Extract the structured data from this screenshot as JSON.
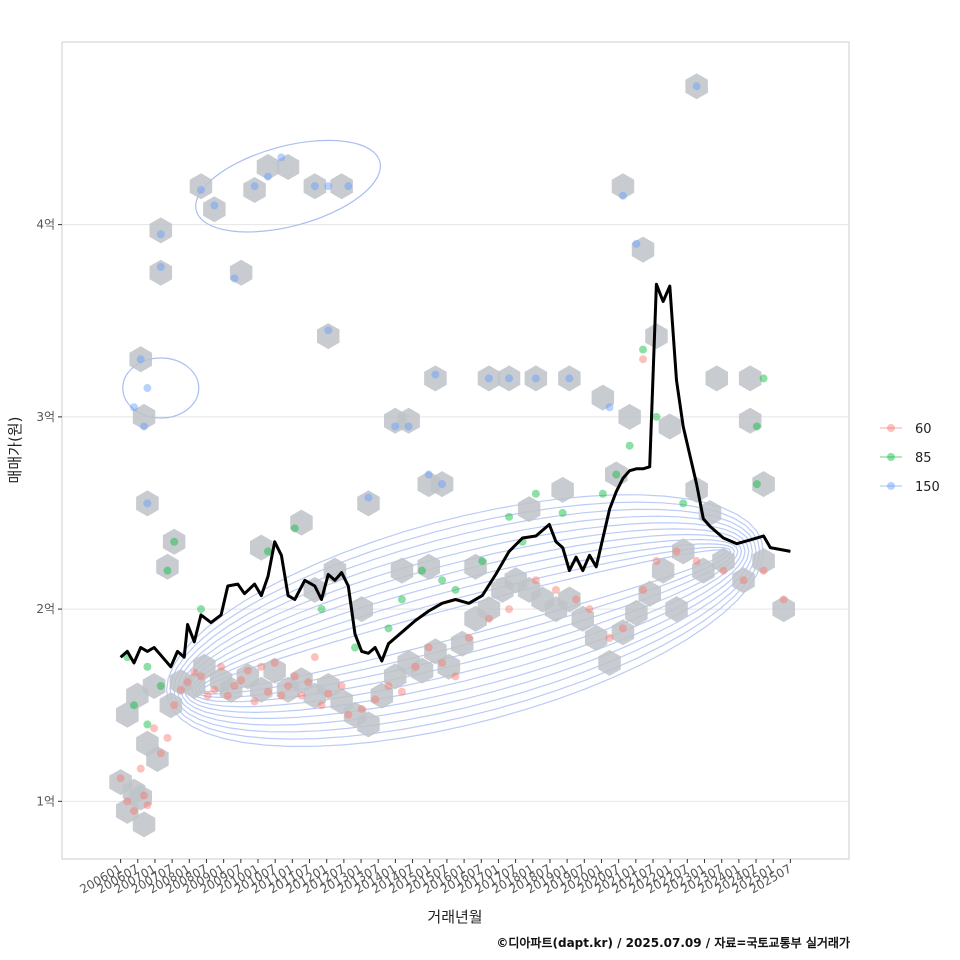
{
  "chart_data": {
    "type": "scatter",
    "xlabel": "거래년월",
    "ylabel": "매매가(원)",
    "x_categories": [
      "200601",
      "200607",
      "200701",
      "200707",
      "200801",
      "200807",
      "200901",
      "200907",
      "201001",
      "201007",
      "201101",
      "201107",
      "201201",
      "201207",
      "201301",
      "201307",
      "201401",
      "201407",
      "201501",
      "201507",
      "201601",
      "201607",
      "201701",
      "201707",
      "201801",
      "201807",
      "201901",
      "201907",
      "202001",
      "202007",
      "202101",
      "202107",
      "202201",
      "202207",
      "202301",
      "202307",
      "202401",
      "202407",
      "202501",
      "202507"
    ],
    "y_ticks": [
      {
        "value": 1,
        "label": "1억"
      },
      {
        "value": 2,
        "label": "2억"
      },
      {
        "value": 3,
        "label": "3억"
      },
      {
        "value": 4,
        "label": "4억"
      }
    ],
    "ylim": [
      0.7,
      4.95
    ],
    "xlim": [
      -0.0875,
      1.0875
    ],
    "grid": true,
    "legend": {
      "position": "right",
      "items": [
        {
          "label": "60",
          "color": "#F8766D"
        },
        {
          "label": "85",
          "color": "#00BA38"
        },
        {
          "label": "150",
          "color": "#619CFF"
        }
      ]
    },
    "caption": "©디아파트(dapt.kr) / 2025.07.09 / 자료=국토교통부 실거래가",
    "colors": {
      "hex": "#BEC3C8",
      "line": "#000000",
      "contour": "#A9BEF2",
      "grid": "#E5E5E5",
      "border": "#CCCCCC"
    },
    "median_line": [
      [
        0.0,
        1.75
      ],
      [
        0.01,
        1.78
      ],
      [
        0.02,
        1.72
      ],
      [
        0.03,
        1.8
      ],
      [
        0.04,
        1.78
      ],
      [
        0.05,
        1.8
      ],
      [
        0.06,
        1.76
      ],
      [
        0.075,
        1.7
      ],
      [
        0.085,
        1.78
      ],
      [
        0.095,
        1.75
      ],
      [
        0.1,
        1.92
      ],
      [
        0.11,
        1.83
      ],
      [
        0.12,
        1.97
      ],
      [
        0.135,
        1.93
      ],
      [
        0.15,
        1.97
      ],
      [
        0.16,
        2.12
      ],
      [
        0.175,
        2.13
      ],
      [
        0.185,
        2.08
      ],
      [
        0.2,
        2.13
      ],
      [
        0.21,
        2.07
      ],
      [
        0.22,
        2.17
      ],
      [
        0.23,
        2.35
      ],
      [
        0.24,
        2.28
      ],
      [
        0.25,
        2.07
      ],
      [
        0.26,
        2.05
      ],
      [
        0.275,
        2.15
      ],
      [
        0.29,
        2.12
      ],
      [
        0.3,
        2.05
      ],
      [
        0.31,
        2.18
      ],
      [
        0.32,
        2.15
      ],
      [
        0.33,
        2.19
      ],
      [
        0.34,
        2.12
      ],
      [
        0.35,
        1.87
      ],
      [
        0.36,
        1.78
      ],
      [
        0.37,
        1.77
      ],
      [
        0.38,
        1.8
      ],
      [
        0.39,
        1.73
      ],
      [
        0.4,
        1.82
      ],
      [
        0.42,
        1.88
      ],
      [
        0.44,
        1.94
      ],
      [
        0.46,
        1.99
      ],
      [
        0.48,
        2.03
      ],
      [
        0.5,
        2.05
      ],
      [
        0.52,
        2.03
      ],
      [
        0.54,
        2.07
      ],
      [
        0.56,
        2.18
      ],
      [
        0.58,
        2.3
      ],
      [
        0.6,
        2.37
      ],
      [
        0.62,
        2.38
      ],
      [
        0.64,
        2.44
      ],
      [
        0.65,
        2.35
      ],
      [
        0.66,
        2.32
      ],
      [
        0.67,
        2.2
      ],
      [
        0.68,
        2.27
      ],
      [
        0.69,
        2.2
      ],
      [
        0.7,
        2.28
      ],
      [
        0.71,
        2.22
      ],
      [
        0.72,
        2.37
      ],
      [
        0.73,
        2.52
      ],
      [
        0.74,
        2.61
      ],
      [
        0.75,
        2.68
      ],
      [
        0.76,
        2.72
      ],
      [
        0.77,
        2.73
      ],
      [
        0.78,
        2.73
      ],
      [
        0.79,
        2.74
      ],
      [
        0.8,
        3.69
      ],
      [
        0.81,
        3.6
      ],
      [
        0.82,
        3.68
      ],
      [
        0.83,
        3.19
      ],
      [
        0.84,
        2.95
      ],
      [
        0.85,
        2.8
      ],
      [
        0.86,
        2.65
      ],
      [
        0.87,
        2.47
      ],
      [
        0.88,
        2.43
      ],
      [
        0.9,
        2.37
      ],
      [
        0.92,
        2.34
      ],
      [
        0.94,
        2.36
      ],
      [
        0.96,
        2.38
      ],
      [
        0.97,
        2.32
      ],
      [
        1.0,
        2.3
      ]
    ],
    "points": {
      "60": [
        [
          0.0,
          1.12
        ],
        [
          0.01,
          1.0
        ],
        [
          0.02,
          0.95
        ],
        [
          0.03,
          1.17
        ],
        [
          0.035,
          1.03
        ],
        [
          0.04,
          0.98
        ],
        [
          0.05,
          1.38
        ],
        [
          0.06,
          1.25
        ],
        [
          0.07,
          1.33
        ],
        [
          0.08,
          1.5
        ],
        [
          0.09,
          1.58
        ],
        [
          0.1,
          1.62
        ],
        [
          0.11,
          1.67
        ],
        [
          0.12,
          1.65
        ],
        [
          0.13,
          1.55
        ],
        [
          0.14,
          1.58
        ],
        [
          0.15,
          1.7
        ],
        [
          0.16,
          1.55
        ],
        [
          0.17,
          1.6
        ],
        [
          0.18,
          1.63
        ],
        [
          0.19,
          1.68
        ],
        [
          0.2,
          1.52
        ],
        [
          0.21,
          1.7
        ],
        [
          0.22,
          1.57
        ],
        [
          0.23,
          1.72
        ],
        [
          0.24,
          1.55
        ],
        [
          0.25,
          1.6
        ],
        [
          0.26,
          1.65
        ],
        [
          0.27,
          1.55
        ],
        [
          0.28,
          1.62
        ],
        [
          0.29,
          1.75
        ],
        [
          0.3,
          1.5
        ],
        [
          0.31,
          1.56
        ],
        [
          0.33,
          1.6
        ],
        [
          0.34,
          1.45
        ],
        [
          0.36,
          1.48
        ],
        [
          0.38,
          1.53
        ],
        [
          0.4,
          1.6
        ],
        [
          0.42,
          1.57
        ],
        [
          0.44,
          1.7
        ],
        [
          0.46,
          1.8
        ],
        [
          0.48,
          1.72
        ],
        [
          0.5,
          1.65
        ],
        [
          0.52,
          1.85
        ],
        [
          0.55,
          1.95
        ],
        [
          0.58,
          2.0
        ],
        [
          0.62,
          2.15
        ],
        [
          0.65,
          2.1
        ],
        [
          0.68,
          2.05
        ],
        [
          0.7,
          2.0
        ],
        [
          0.73,
          1.85
        ],
        [
          0.75,
          1.9
        ],
        [
          0.78,
          2.1
        ],
        [
          0.8,
          2.25
        ],
        [
          0.78,
          3.3
        ],
        [
          0.83,
          2.3
        ],
        [
          0.86,
          2.25
        ],
        [
          0.9,
          2.2
        ],
        [
          0.93,
          2.15
        ],
        [
          0.96,
          2.2
        ],
        [
          0.99,
          2.05
        ]
      ],
      "85": [
        [
          0.01,
          1.75
        ],
        [
          0.02,
          1.5
        ],
        [
          0.04,
          1.7
        ],
        [
          0.04,
          1.4
        ],
        [
          0.06,
          1.6
        ],
        [
          0.07,
          2.2
        ],
        [
          0.08,
          2.35
        ],
        [
          0.12,
          2.0
        ],
        [
          0.22,
          2.3
        ],
        [
          0.26,
          2.42
        ],
        [
          0.3,
          2.0
        ],
        [
          0.35,
          1.8
        ],
        [
          0.4,
          1.9
        ],
        [
          0.42,
          2.05
        ],
        [
          0.45,
          2.2
        ],
        [
          0.48,
          2.15
        ],
        [
          0.5,
          2.1
        ],
        [
          0.54,
          2.25
        ],
        [
          0.58,
          2.48
        ],
        [
          0.6,
          2.35
        ],
        [
          0.62,
          2.6
        ],
        [
          0.66,
          2.5
        ],
        [
          0.72,
          2.6
        ],
        [
          0.74,
          2.7
        ],
        [
          0.76,
          2.85
        ],
        [
          0.78,
          3.35
        ],
        [
          0.8,
          3.0
        ],
        [
          0.84,
          2.55
        ],
        [
          0.95,
          2.95
        ],
        [
          0.96,
          3.2
        ],
        [
          0.95,
          2.65
        ]
      ],
      "150": [
        [
          0.02,
          3.05
        ],
        [
          0.03,
          3.3
        ],
        [
          0.035,
          2.95
        ],
        [
          0.04,
          3.15
        ],
        [
          0.04,
          2.55
        ],
        [
          0.06,
          3.95
        ],
        [
          0.06,
          3.78
        ],
        [
          0.12,
          4.18
        ],
        [
          0.14,
          4.1
        ],
        [
          0.17,
          3.72
        ],
        [
          0.2,
          4.2
        ],
        [
          0.22,
          4.25
        ],
        [
          0.24,
          4.35
        ],
        [
          0.29,
          4.2
        ],
        [
          0.31,
          4.2
        ],
        [
          0.34,
          4.2
        ],
        [
          0.31,
          3.45
        ],
        [
          0.37,
          2.58
        ],
        [
          0.41,
          2.95
        ],
        [
          0.43,
          2.95
        ],
        [
          0.46,
          2.7
        ],
        [
          0.48,
          2.65
        ],
        [
          0.47,
          3.22
        ],
        [
          0.55,
          3.2
        ],
        [
          0.58,
          3.2
        ],
        [
          0.62,
          3.2
        ],
        [
          0.67,
          3.2
        ],
        [
          0.73,
          3.05
        ],
        [
          0.75,
          4.15
        ],
        [
          0.77,
          3.9
        ],
        [
          0.86,
          4.72
        ]
      ]
    },
    "hexbins": [
      [
        0.0,
        1.1
      ],
      [
        0.01,
        0.95
      ],
      [
        0.02,
        1.05
      ],
      [
        0.03,
        1.02
      ],
      [
        0.035,
        0.88
      ],
      [
        0.04,
        1.3
      ],
      [
        0.055,
        1.22
      ],
      [
        0.01,
        1.45
      ],
      [
        0.025,
        1.55
      ],
      [
        0.05,
        1.6
      ],
      [
        0.075,
        1.5
      ],
      [
        0.09,
        1.62
      ],
      [
        0.11,
        1.6
      ],
      [
        0.125,
        1.7
      ],
      [
        0.15,
        1.63
      ],
      [
        0.165,
        1.58
      ],
      [
        0.19,
        1.65
      ],
      [
        0.21,
        1.58
      ],
      [
        0.23,
        1.68
      ],
      [
        0.25,
        1.58
      ],
      [
        0.27,
        1.63
      ],
      [
        0.29,
        1.55
      ],
      [
        0.31,
        1.6
      ],
      [
        0.33,
        1.52
      ],
      [
        0.35,
        1.45
      ],
      [
        0.37,
        1.4
      ],
      [
        0.39,
        1.55
      ],
      [
        0.41,
        1.65
      ],
      [
        0.43,
        1.72
      ],
      [
        0.45,
        1.68
      ],
      [
        0.47,
        1.78
      ],
      [
        0.49,
        1.7
      ],
      [
        0.51,
        1.82
      ],
      [
        0.53,
        1.95
      ],
      [
        0.55,
        2.0
      ],
      [
        0.57,
        2.1
      ],
      [
        0.59,
        2.15
      ],
      [
        0.61,
        2.1
      ],
      [
        0.63,
        2.05
      ],
      [
        0.65,
        2.0
      ],
      [
        0.67,
        2.05
      ],
      [
        0.69,
        1.95
      ],
      [
        0.71,
        1.85
      ],
      [
        0.73,
        1.72
      ],
      [
        0.75,
        1.88
      ],
      [
        0.77,
        1.98
      ],
      [
        0.79,
        2.08
      ],
      [
        0.81,
        2.2
      ],
      [
        0.83,
        2.0
      ],
      [
        0.87,
        2.2
      ],
      [
        0.9,
        2.25
      ],
      [
        0.93,
        2.15
      ],
      [
        0.96,
        2.25
      ],
      [
        0.99,
        2.0
      ],
      [
        0.03,
        3.3
      ],
      [
        0.035,
        3.0
      ],
      [
        0.04,
        2.55
      ],
      [
        0.06,
        3.97
      ],
      [
        0.06,
        3.75
      ],
      [
        0.12,
        4.2
      ],
      [
        0.14,
        4.08
      ],
      [
        0.18,
        3.75
      ],
      [
        0.2,
        4.18
      ],
      [
        0.22,
        4.3
      ],
      [
        0.25,
        4.3
      ],
      [
        0.29,
        4.2
      ],
      [
        0.33,
        4.2
      ],
      [
        0.31,
        3.42
      ],
      [
        0.37,
        2.55
      ],
      [
        0.41,
        2.98
      ],
      [
        0.43,
        2.98
      ],
      [
        0.46,
        2.65
      ],
      [
        0.48,
        2.65
      ],
      [
        0.47,
        3.2
      ],
      [
        0.55,
        3.2
      ],
      [
        0.58,
        3.2
      ],
      [
        0.62,
        3.2
      ],
      [
        0.67,
        3.2
      ],
      [
        0.72,
        3.1
      ],
      [
        0.75,
        4.2
      ],
      [
        0.78,
        3.87
      ],
      [
        0.86,
        4.72
      ],
      [
        0.89,
        3.2
      ],
      [
        0.94,
        3.2
      ],
      [
        0.94,
        2.98
      ],
      [
        0.96,
        2.65
      ],
      [
        0.86,
        2.62
      ],
      [
        0.8,
        3.42
      ],
      [
        0.66,
        2.62
      ],
      [
        0.61,
        2.52
      ],
      [
        0.53,
        2.22
      ],
      [
        0.42,
        2.2
      ],
      [
        0.36,
        2.0
      ],
      [
        0.46,
        2.22
      ],
      [
        0.21,
        2.32
      ],
      [
        0.27,
        2.45
      ],
      [
        0.07,
        2.22
      ],
      [
        0.08,
        2.35
      ],
      [
        0.29,
        2.1
      ],
      [
        0.32,
        2.2
      ],
      [
        0.76,
        3.0
      ],
      [
        0.74,
        2.7
      ],
      [
        0.82,
        2.95
      ],
      [
        0.84,
        2.3
      ],
      [
        0.88,
        2.5
      ]
    ]
  }
}
